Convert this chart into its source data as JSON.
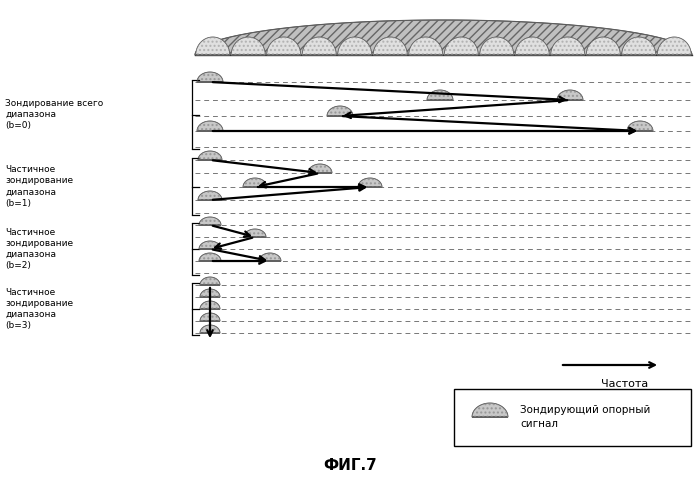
{
  "bg_color": "#ffffff",
  "section_labels": [
    "Зондирование всего\nдиапазона\n(b=0)",
    "Частичное\nзондирование\nдиапазона\n(b=1)",
    "Частичное\nзондирование\nдиапазона\n(b=2)",
    "Частичное\nзондирование\nдиапазона\n(b=3)"
  ],
  "freq_label": "Частота",
  "legend_label": "Зондирующий опорный\nсигнал",
  "fig_label": "ФИГ.7"
}
